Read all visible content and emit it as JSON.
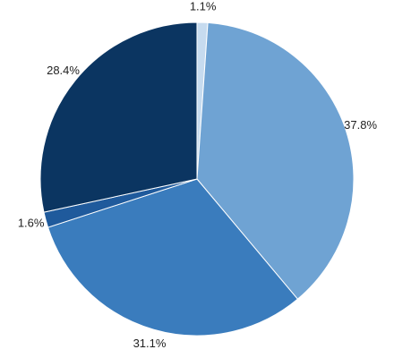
{
  "chart_data": {
    "type": "pie",
    "categories": [
      null,
      null,
      null,
      null,
      null
    ],
    "values": [
      1.1,
      37.8,
      31.1,
      1.6,
      28.4
    ],
    "value_labels": [
      "1.1%",
      "37.8%",
      "31.1%",
      "1.6%",
      "28.4%"
    ],
    "colors": [
      "#c6dbef",
      "#6fa3d3",
      "#3a7cbd",
      "#1f5a9c",
      "#0b3561"
    ]
  }
}
